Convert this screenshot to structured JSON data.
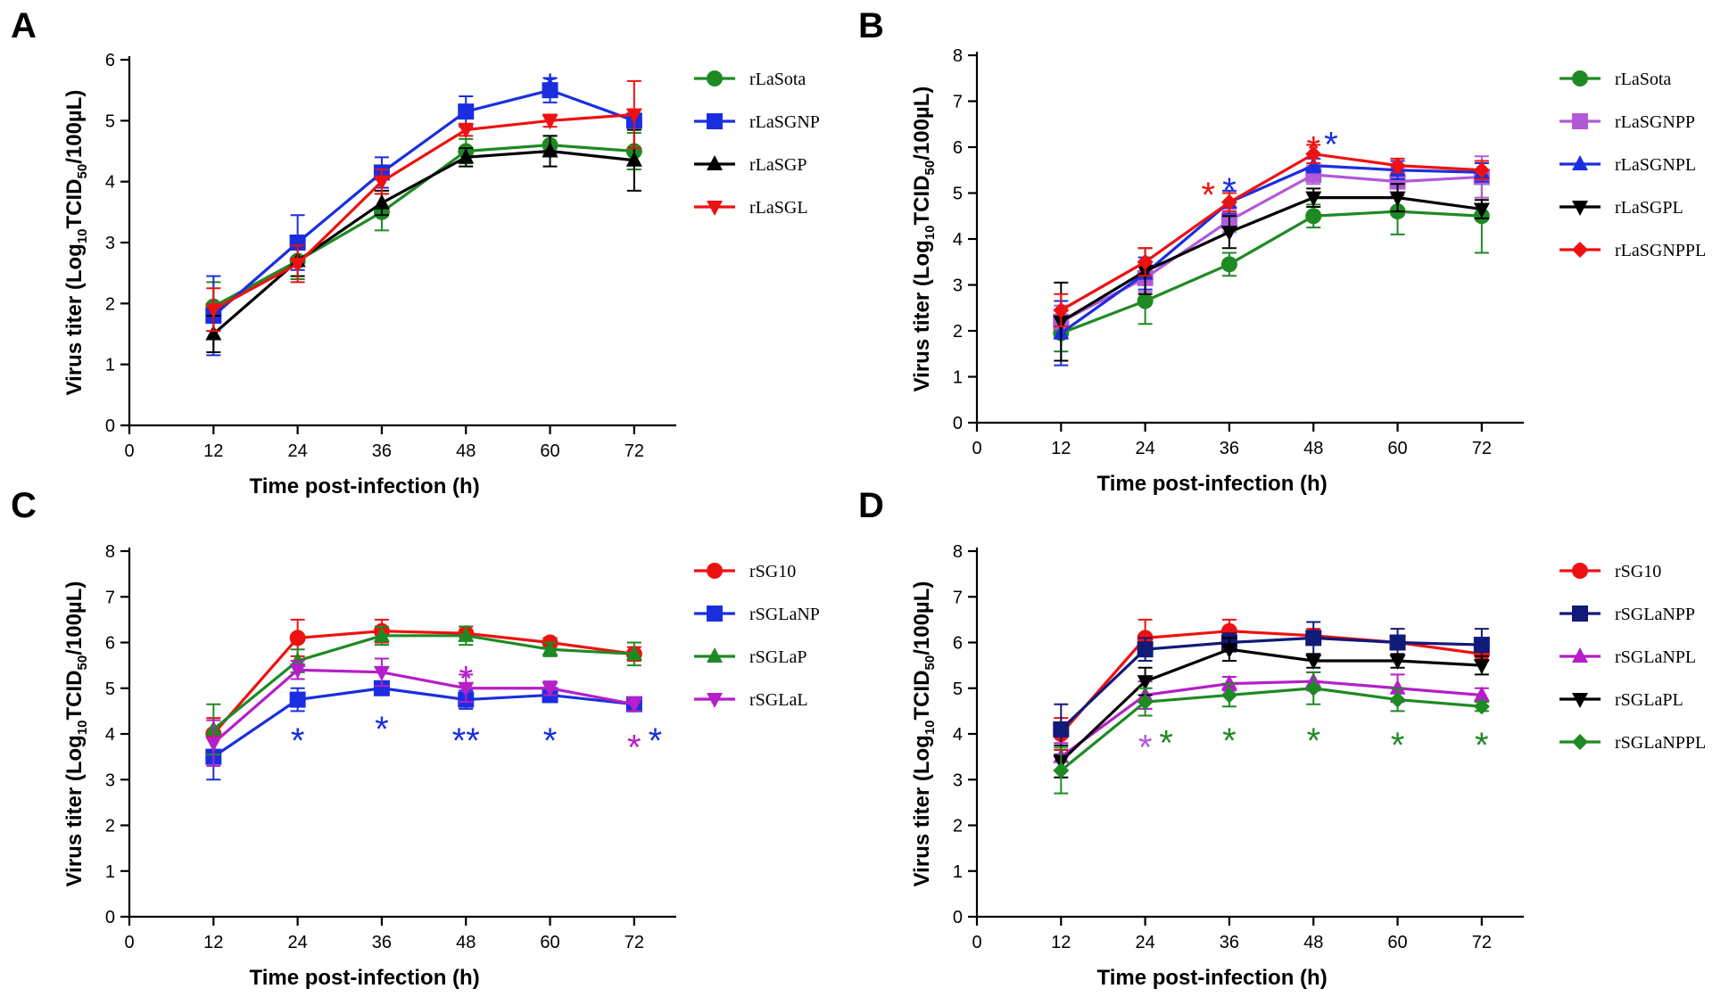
{
  "figure": {
    "colors": {
      "green": "#1e8a24",
      "blue": "#1a2ee0",
      "black": "#000000",
      "red": "#ee1111",
      "violet": "#b05ad8",
      "magenta": "#b51ec8",
      "navy": "#101a78"
    }
  },
  "chart_data": [
    {
      "panel": "A",
      "type": "line",
      "xlabel": "Time post-infection (h)",
      "ylabel": "Virus titer (Log10TCID50/100µL)",
      "ylabel_parts": {
        "a": "Virus titer (Log",
        "b": "10",
        "c": "TCID",
        "d": "50",
        "e": "/100µL)"
      },
      "xlim": [
        0,
        78
      ],
      "ylim": [
        0,
        6
      ],
      "x_ticks": [
        0,
        12,
        24,
        36,
        48,
        60,
        72
      ],
      "y_ticks": [
        0,
        1,
        2,
        3,
        4,
        5,
        6
      ],
      "x": [
        12,
        24,
        36,
        48,
        60,
        72
      ],
      "series": [
        {
          "name": "rLaSota",
          "color": "#1e8a24",
          "marker": "circle",
          "values": [
            1.95,
            2.7,
            3.5,
            4.5,
            4.6,
            4.5
          ],
          "errors": [
            0.4,
            0.3,
            0.3,
            0.2,
            0.15,
            0.3
          ]
        },
        {
          "name": "rLaSGNP",
          "color": "#1a2ee0",
          "marker": "square",
          "values": [
            1.8,
            3.0,
            4.15,
            5.15,
            5.5,
            5.0
          ],
          "errors": [
            0.65,
            0.45,
            0.25,
            0.25,
            0.2,
            0.1
          ]
        },
        {
          "name": "rLaSGP",
          "color": "#000000",
          "marker": "triangle-up",
          "values": [
            1.5,
            2.7,
            3.65,
            4.4,
            4.5,
            4.35
          ],
          "errors": [
            0.3,
            0.25,
            0.2,
            0.15,
            0.25,
            0.5
          ]
        },
        {
          "name": "rLaSGL",
          "color": "#ee1111",
          "marker": "triangle-down",
          "values": [
            1.9,
            2.65,
            4.0,
            4.85,
            5.0,
            5.1
          ],
          "errors": [
            0.35,
            0.3,
            0.2,
            0.1,
            0.1,
            0.55
          ]
        }
      ],
      "annotations": [
        {
          "text": "*",
          "x": 60,
          "y": 5.75,
          "color": "#1a2ee0"
        }
      ]
    },
    {
      "panel": "B",
      "type": "line",
      "xlabel": "Time post-infection (h)",
      "ylabel": "Virus titer (Log10TCID50/100µL)",
      "ylabel_parts": {
        "a": "Virus titer (Log",
        "b": "10",
        "c": "TCID",
        "d": "50",
        "e": "/100µL)"
      },
      "xlim": [
        0,
        78
      ],
      "ylim": [
        0,
        8
      ],
      "x_ticks": [
        0,
        12,
        24,
        36,
        48,
        60,
        72
      ],
      "y_ticks": [
        0,
        1,
        2,
        3,
        4,
        5,
        6,
        7,
        8
      ],
      "x": [
        12,
        24,
        36,
        48,
        60,
        72
      ],
      "series": [
        {
          "name": "rLaSota",
          "color": "#1e8a24",
          "marker": "circle",
          "values": [
            1.95,
            2.65,
            3.45,
            4.5,
            4.6,
            4.5
          ],
          "errors": [
            0.4,
            0.5,
            0.25,
            0.25,
            0.5,
            0.8
          ]
        },
        {
          "name": "rLaSGNPP",
          "color": "#b05ad8",
          "marker": "square",
          "values": [
            2.2,
            3.15,
            4.4,
            5.4,
            5.25,
            5.35
          ],
          "errors": [
            0.35,
            0.3,
            0.25,
            0.2,
            0.3,
            0.45
          ]
        },
        {
          "name": "rLaSGNPL",
          "color": "#1a2ee0",
          "marker": "triangle-up",
          "values": [
            1.95,
            3.25,
            4.8,
            5.6,
            5.5,
            5.45
          ],
          "errors": [
            0.7,
            0.35,
            0.25,
            0.15,
            0.2,
            0.2
          ]
        },
        {
          "name": "rLaSGPL",
          "color": "#000000",
          "marker": "triangle-down",
          "values": [
            2.2,
            3.3,
            4.15,
            4.9,
            4.9,
            4.65
          ],
          "errors": [
            0.85,
            0.5,
            0.35,
            0.2,
            0.3,
            0.2
          ]
        },
        {
          "name": "rLaSGNPPL",
          "color": "#ee1111",
          "marker": "diamond",
          "values": [
            2.45,
            3.5,
            4.8,
            5.85,
            5.6,
            5.5
          ],
          "errors": [
            0.35,
            0.3,
            0.2,
            0.2,
            0.15,
            0.2
          ]
        }
      ],
      "annotations": [
        {
          "text": "*",
          "x": 33,
          "y": 5.2,
          "color": "#ee1111"
        },
        {
          "text": "*",
          "x": 36,
          "y": 5.3,
          "color": "#1a2ee0"
        },
        {
          "text": "*",
          "x": 48,
          "y": 6.2,
          "color": "#ee1111"
        },
        {
          "text": "*",
          "x": 50.5,
          "y": 6.3,
          "color": "#1a2ee0"
        }
      ]
    },
    {
      "panel": "C",
      "type": "line",
      "xlabel": "Time post-infection (h)",
      "ylabel": "Virus titer (Log10TCID50/100µL)",
      "ylabel_parts": {
        "a": "Virus titer (Log",
        "b": "10",
        "c": "TCID",
        "d": "50",
        "e": "/100µL)"
      },
      "xlim": [
        0,
        78
      ],
      "ylim": [
        0,
        8
      ],
      "x_ticks": [
        0,
        12,
        24,
        36,
        48,
        60,
        72
      ],
      "y_ticks": [
        0,
        1,
        2,
        3,
        4,
        5,
        6,
        7,
        8
      ],
      "x": [
        12,
        24,
        36,
        48,
        60,
        72
      ],
      "series": [
        {
          "name": "rSG10",
          "color": "#ee1111",
          "marker": "circle",
          "values": [
            4.0,
            6.1,
            6.25,
            6.2,
            6.0,
            5.75
          ],
          "errors": [
            0.35,
            0.4,
            0.25,
            0.15,
            0.1,
            0.15
          ]
        },
        {
          "name": "rSGLaNP",
          "color": "#1a2ee0",
          "marker": "square",
          "values": [
            3.5,
            4.75,
            5.0,
            4.75,
            4.85,
            4.65
          ],
          "errors": [
            0.5,
            0.25,
            0.15,
            0.2,
            0.15,
            0.1
          ]
        },
        {
          "name": "rSGLaP",
          "color": "#1e8a24",
          "marker": "triangle-up",
          "values": [
            4.1,
            5.6,
            6.15,
            6.15,
            5.85,
            5.75
          ],
          "errors": [
            0.55,
            0.25,
            0.2,
            0.2,
            0.15,
            0.25
          ]
        },
        {
          "name": "rSGLaL",
          "color": "#b51ec8",
          "marker": "triangle-down",
          "values": [
            3.8,
            5.4,
            5.35,
            5.0,
            5.0,
            4.65
          ],
          "errors": [
            0.5,
            0.2,
            0.3,
            0.3,
            0.15,
            0.15
          ]
        }
      ],
      "annotations": [
        {
          "text": "*",
          "x": 24,
          "y": 4.1,
          "color": "#1a2ee0"
        },
        {
          "text": "*",
          "x": 36,
          "y": 4.35,
          "color": "#1a2ee0"
        },
        {
          "text": "**",
          "x": 48,
          "y": 4.1,
          "color": "#1a2ee0"
        },
        {
          "text": "*",
          "x": 48,
          "y": 5.45,
          "color": "#b51ec8"
        },
        {
          "text": "*",
          "x": 60,
          "y": 4.1,
          "color": "#1a2ee0"
        },
        {
          "text": "*",
          "x": 72,
          "y": 3.95,
          "color": "#b51ec8"
        },
        {
          "text": "*",
          "x": 75,
          "y": 4.1,
          "color": "#1a2ee0"
        }
      ]
    },
    {
      "panel": "D",
      "type": "line",
      "xlabel": "Time post-infection (h)",
      "ylabel": "Virus titer (Log10TCID50/100µL)",
      "ylabel_parts": {
        "a": "Virus titer (Log",
        "b": "10",
        "c": "TCID",
        "d": "50",
        "e": "/100µL)"
      },
      "xlim": [
        0,
        78
      ],
      "ylim": [
        0,
        8
      ],
      "x_ticks": [
        0,
        12,
        24,
        36,
        48,
        60,
        72
      ],
      "y_ticks": [
        0,
        1,
        2,
        3,
        4,
        5,
        6,
        7,
        8
      ],
      "x": [
        12,
        24,
        36,
        48,
        60,
        72
      ],
      "series": [
        {
          "name": "rSG10",
          "color": "#ee1111",
          "marker": "circle",
          "values": [
            4.0,
            6.1,
            6.25,
            6.15,
            6.0,
            5.75
          ],
          "errors": [
            0.35,
            0.4,
            0.25,
            0.15,
            0.1,
            0.15
          ]
        },
        {
          "name": "rSGLaNPP",
          "color": "#101a78",
          "marker": "square",
          "values": [
            4.1,
            5.85,
            6.0,
            6.1,
            6.0,
            5.95
          ],
          "errors": [
            0.55,
            0.25,
            0.2,
            0.35,
            0.3,
            0.35
          ]
        },
        {
          "name": "rSGLaNPL",
          "color": "#b51ec8",
          "marker": "triangle-up",
          "values": [
            3.5,
            4.85,
            5.1,
            5.15,
            5.0,
            4.85
          ],
          "errors": [
            0.3,
            0.3,
            0.15,
            0.2,
            0.3,
            0.15
          ]
        },
        {
          "name": "rSGLaPL",
          "color": "#000000",
          "marker": "triangle-down",
          "values": [
            3.4,
            5.15,
            5.85,
            5.6,
            5.6,
            5.5
          ],
          "errors": [
            0.35,
            0.3,
            0.25,
            0.15,
            0.15,
            0.2
          ]
        },
        {
          "name": "rSGLaNPPL",
          "color": "#1e8a24",
          "marker": "diamond",
          "values": [
            3.2,
            4.7,
            4.85,
            5.0,
            4.75,
            4.6
          ],
          "errors": [
            0.5,
            0.3,
            0.25,
            0.35,
            0.25,
            0.1
          ]
        }
      ],
      "annotations": [
        {
          "text": "*",
          "x": 24,
          "y": 3.95,
          "color": "#b05ad8"
        },
        {
          "text": "*",
          "x": 27,
          "y": 4.05,
          "color": "#1e8a24"
        },
        {
          "text": "*",
          "x": 36,
          "y": 4.1,
          "color": "#1e8a24"
        },
        {
          "text": "*",
          "x": 48,
          "y": 4.1,
          "color": "#1e8a24"
        },
        {
          "text": "*",
          "x": 60,
          "y": 4.0,
          "color": "#1e8a24"
        },
        {
          "text": "*",
          "x": 72,
          "y": 4.0,
          "color": "#1e8a24"
        }
      ]
    }
  ]
}
